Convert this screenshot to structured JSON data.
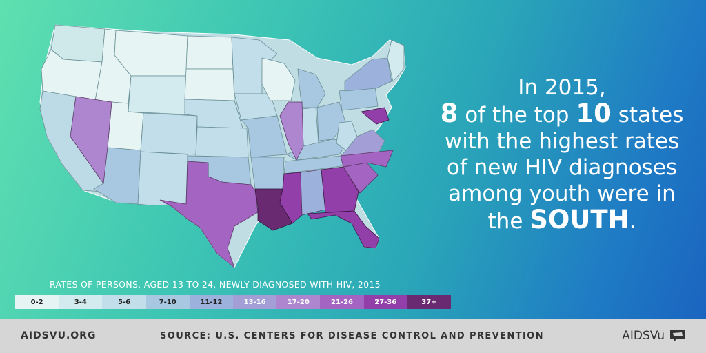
{
  "headline": {
    "line1": "In 2015,",
    "line2_number": "8",
    "line2_mid": " of the top ",
    "line2_number2": "10",
    "line2_end": " states",
    "line3": "with the highest rates",
    "line4": "of new HIV diagnoses",
    "line5": "among youth were in",
    "line6_start": "the ",
    "line6_emph": "SOUTH",
    "line6_end": "."
  },
  "legend": {
    "title": "RATES OF PERSONS, AGED 13 TO 24, NEWLY DIAGNOSED WITH HIV, 2015",
    "bins": [
      {
        "label": "0-2",
        "color": "#e6f5f3"
      },
      {
        "label": "3-4",
        "color": "#d3ebef"
      },
      {
        "label": "5-6",
        "color": "#c2deea"
      },
      {
        "label": "7-10",
        "color": "#a8c8e2"
      },
      {
        "label": "11-12",
        "color": "#9cb2dc"
      },
      {
        "label": "13-16",
        "color": "#a49ed6"
      },
      {
        "label": "17-20",
        "color": "#ad86cf"
      },
      {
        "label": "21-26",
        "color": "#a364c2"
      },
      {
        "label": "27-36",
        "color": "#933fa9"
      },
      {
        "label": "37+",
        "color": "#6a2a72"
      }
    ]
  },
  "footer": {
    "site": "AIDSVU.ORG",
    "source": "SOURCE: U.S. CENTERS FOR DISEASE CONTROL AND PREVENTION",
    "brand": "AIDSVu"
  }
}
